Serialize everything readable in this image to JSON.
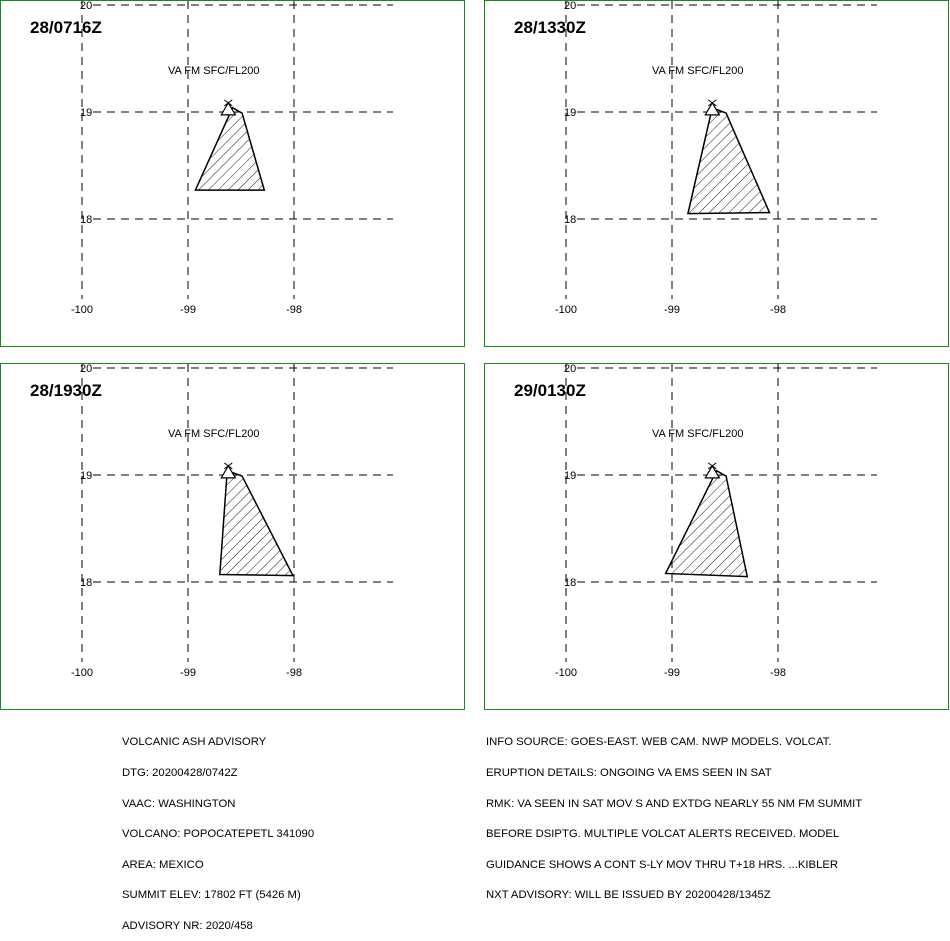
{
  "panels": [
    {
      "time": "28/0716Z",
      "layer": "VA FM SFC/FL200",
      "polygon": [
        [
          -98.58,
          19.04
        ],
        [
          -98.93,
          18.27
        ],
        [
          -98.28,
          18.27
        ],
        [
          -98.49,
          18.99
        ]
      ]
    },
    {
      "time": "28/1330Z",
      "layer": "VA FM SFC/FL200",
      "polygon": [
        [
          -98.62,
          19.04
        ],
        [
          -98.85,
          18.05
        ],
        [
          -98.08,
          18.06
        ],
        [
          -98.49,
          18.99
        ]
      ]
    },
    {
      "time": "28/1930Z",
      "layer": "VA FM SFC/FL200",
      "polygon": [
        [
          -98.63,
          19.04
        ],
        [
          -98.7,
          18.07
        ],
        [
          -98.01,
          18.06
        ],
        [
          -98.49,
          18.99
        ]
      ]
    },
    {
      "time": "29/0130Z",
      "layer": "VA FM SFC/FL200",
      "polygon": [
        [
          -98.58,
          19.04
        ],
        [
          -99.06,
          18.08
        ],
        [
          -98.29,
          18.05
        ],
        [
          -98.49,
          18.99
        ]
      ]
    }
  ],
  "axes": {
    "lat_ticks": [
      "20",
      "19",
      "18"
    ],
    "lon_ticks": [
      "-100",
      "-99",
      "-98"
    ]
  },
  "volcano_summit": {
    "lon": -98.62,
    "lat": 19.02
  },
  "advisory_left": [
    "VOLCANIC ASH ADVISORY",
    "DTG: 20200428/0742Z",
    "VAAC: WASHINGTON",
    "VOLCANO: POPOCATEPETL 341090",
    "AREA: MEXICO",
    "SUMMIT ELEV: 17802 FT (5426 M)",
    "ADVISORY NR: 2020/458"
  ],
  "advisory_right": [
    "INFO SOURCE: GOES-EAST. WEB CAM. NWP MODELS. VOLCAT.",
    "ERUPTION DETAILS: ONGOING VA EMS SEEN IN SAT",
    "RMK: VA SEEN IN SAT MOV S AND EXTDG NEARLY 55 NM FM SUMMIT",
    "BEFORE DSIPTG. MULTIPLE VOLCAT ALERTS RECEIVED. MODEL",
    "GUIDANCE SHOWS A CONT S-LY MOV THRU T+18 HRS. ...KIBLER",
    "NXT ADVISORY: WILL BE ISSUED BY 20200428/1345Z"
  ]
}
